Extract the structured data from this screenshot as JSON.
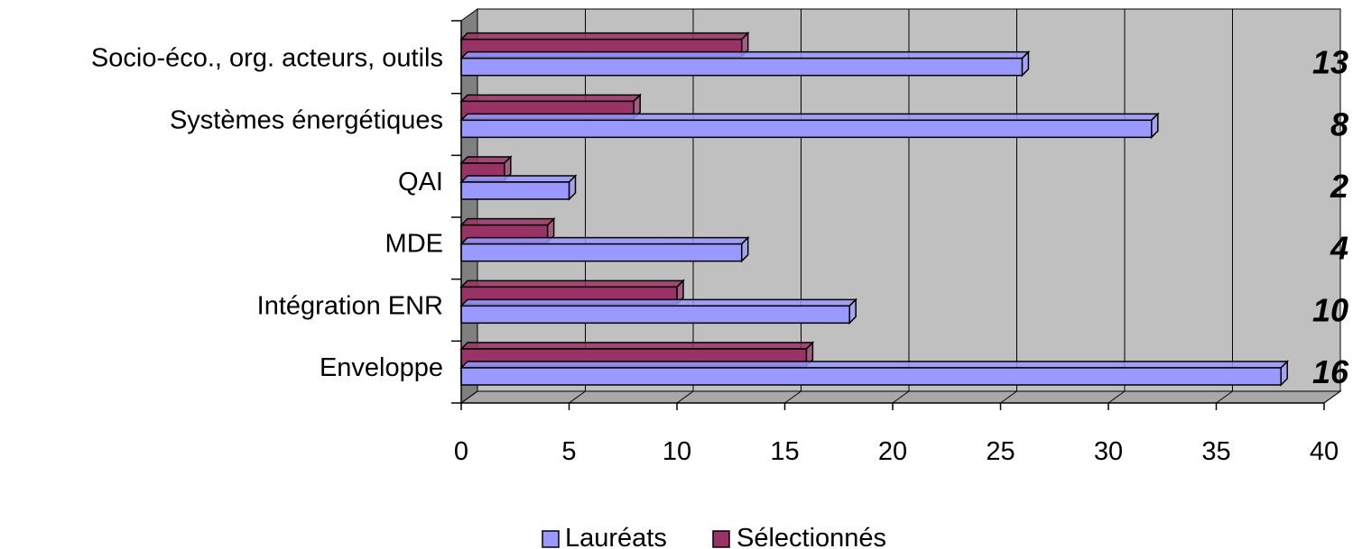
{
  "chart_data": {
    "type": "bar",
    "orientation": "horizontal",
    "three_d": true,
    "categories": [
      "Enveloppe",
      "Intégration ENR",
      "MDE",
      "QAI",
      "Systèmes énergétiques",
      "Socio-éco., org. acteurs, outils"
    ],
    "series": [
      {
        "name": "Lauréats",
        "values": [
          38,
          18,
          13,
          5,
          32,
          26
        ]
      },
      {
        "name": "Sélectionnés",
        "values": [
          16,
          10,
          4,
          2,
          8,
          13
        ]
      }
    ],
    "data_labels": [
      "16",
      "10",
      "4",
      "2",
      "8",
      "13"
    ],
    "xlim": [
      0,
      40
    ],
    "xticks": [
      "0",
      "5",
      "10",
      "15",
      "20",
      "25",
      "30",
      "35",
      "40"
    ],
    "grid": true,
    "legend_position": "bottom",
    "colors": {
      "laureats": "#9999ff",
      "selectionnes": "#993366",
      "plot_bg": "#c0c0c0",
      "wall_side": "#808080"
    }
  }
}
